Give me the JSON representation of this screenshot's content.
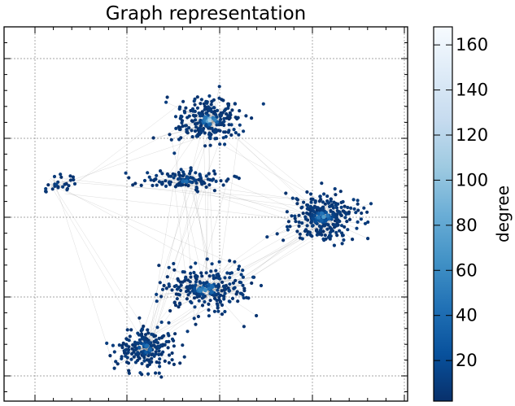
{
  "chart_data": {
    "type": "scatter",
    "title": "Graph representation",
    "xlabel": "",
    "ylabel": "",
    "grid": true,
    "colorbar": {
      "label": "degree",
      "range": [
        2,
        168
      ],
      "ticks": [
        "20",
        "40",
        "60",
        "80",
        "100",
        "120",
        "140",
        "160"
      ],
      "tick_values": [
        20,
        40,
        60,
        80,
        100,
        120,
        140,
        160
      ],
      "colormap": "Blues_r",
      "colors": [
        "#08306b",
        "#08519c",
        "#2171b5",
        "#4292c6",
        "#6baed6",
        "#9ecae1",
        "#c6dbef",
        "#deebf7",
        "#f7fbff"
      ]
    },
    "xlim": [
      0,
      10
    ],
    "ylim": [
      0,
      10
    ],
    "clusters": [
      {
        "name": "",
        "center": [
          5.1,
          7.5
        ],
        "spread": [
          0.75,
          0.55
        ],
        "nodes": 230,
        "hub_degree": 110
      },
      {
        "name": "",
        "center": [
          4.5,
          5.9
        ],
        "spread": [
          0.9,
          0.25
        ],
        "nodes": 120,
        "hub_degree": 60
      },
      {
        "name": "",
        "center": [
          7.9,
          4.9
        ],
        "spread": [
          0.85,
          0.6
        ],
        "nodes": 260,
        "hub_degree": 90
      },
      {
        "name": "",
        "center": [
          5.0,
          3.0
        ],
        "spread": [
          1.0,
          0.55
        ],
        "nodes": 230,
        "hub_degree": 90
      },
      {
        "name": "",
        "center": [
          3.5,
          1.4
        ],
        "spread": [
          0.65,
          0.55
        ],
        "nodes": 200,
        "hub_degree": 70
      },
      {
        "name": "",
        "center": [
          1.3,
          5.8
        ],
        "spread": [
          0.4,
          0.25
        ],
        "nodes": 25,
        "hub_degree": 10
      }
    ],
    "node_color_by": "degree",
    "edge_color": "#555555"
  }
}
